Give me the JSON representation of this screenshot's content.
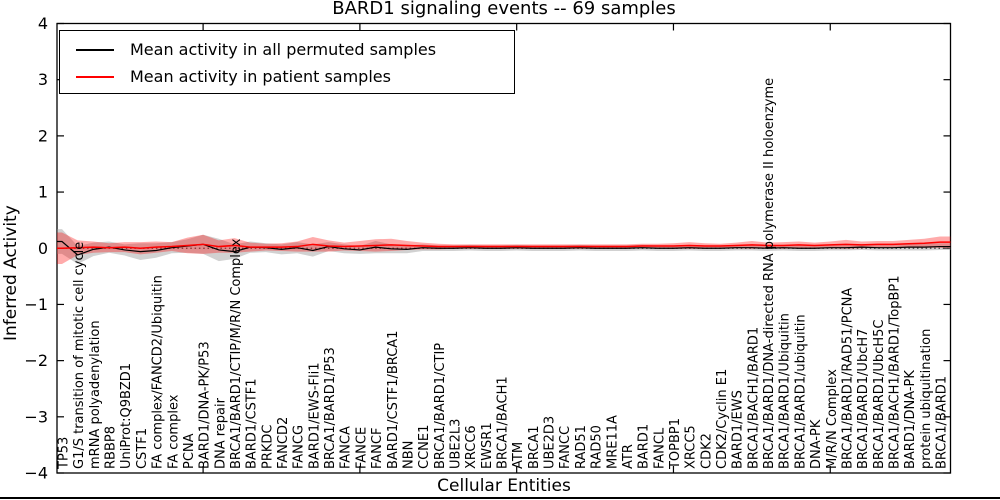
{
  "figure": {
    "title": "BARD1 signaling events -- 69 samples",
    "xlabel": "Cellular Entities",
    "ylabel": "Inferred Activity"
  },
  "legend": {
    "position": "upper left",
    "entries": [
      {
        "key": "permuted",
        "label": "Mean activity in all permuted samples",
        "color": "#000000"
      },
      {
        "key": "patient",
        "label": "Mean activity in patient samples",
        "color": "#ff0000"
      }
    ]
  },
  "chart_data": {
    "type": "line",
    "title": "BARD1 signaling events -- 69 samples",
    "xlabel": "Cellular Entities",
    "ylabel": "Inferred Activity",
    "ylim": [
      -4,
      4
    ],
    "yticks": [
      4,
      3,
      2,
      1,
      0,
      -1,
      -2,
      -3,
      -4
    ],
    "ytick_labels": [
      "4",
      "3",
      "2",
      "1",
      "0",
      "−1",
      "−2",
      "−3",
      "−4"
    ],
    "xtick_positions": [
      9,
      19,
      29,
      39,
      49
    ],
    "grid": false,
    "zero_line": true,
    "legend_position": "upper left",
    "categories": [
      "TP53",
      "G1/S transition of mitotic cell cycle",
      "mRNA polyadenylation",
      "RBBP8",
      "UniProt:Q9BZD1",
      "CSTF1",
      "FA complex/FANCD2/Ubiquitin",
      "FA complex",
      "PCNA",
      "BARD1/DNA-PK/P53",
      "DNA repair",
      "BRCA1/BARD1/CTIP/M/R/N Complex",
      "BARD1/CSTF1",
      "PRKDC",
      "FANCD2",
      "FANCG",
      "BARD1/EWS-Fli1",
      "BRCA1/BARD1/P53",
      "FANCA",
      "FANCE",
      "FANCF",
      "BARD1/CSTF1/BRCA1",
      "NBN",
      "CCNE1",
      "BRCA1/BARD1/CTIP",
      "UBE2L3",
      "XRCC6",
      "EWSR1",
      "BRCA1/BACH1",
      "ATM",
      "BRCA1",
      "UBE2D3",
      "FANCC",
      "RAD51",
      "RAD50",
      "MRE11A",
      "ATR",
      "BARD1",
      "FANCL",
      "TOPBP1",
      "XRCC5",
      "CDK2",
      "CDK2/Cyclin E1",
      "BARD1/EWS",
      "BRCA1/BACH1/BARD1",
      "BRCA1/BARD1/DNA-directed RNA polymerase II holoenzyme",
      "BRCA1/BARD1/Ubiquitin",
      "BRCA1/BARD1/ubiquitin",
      "DNA-PK",
      "M/R/N Complex",
      "BRCA1/BARD1/RAD51/PCNA",
      "BRCA1/BARD1/UbcH7",
      "BRCA1/BARD1/UbcH5C",
      "BRCA1/BACH1/BARD1/TopBP1",
      "BARD1/DNA-PK",
      "protein ubiquitination",
      "BRCA1/BARD1"
    ],
    "series": [
      {
        "key": "permuted",
        "name": "Mean activity in all permuted samples",
        "color": "#000000",
        "band_color": "#999999",
        "band_opacity": 0.45,
        "values": [
          0.12,
          -0.12,
          -0.02,
          0.02,
          -0.03,
          -0.06,
          -0.04,
          0.01,
          0.04,
          0.07,
          -0.03,
          -0.06,
          0.02,
          0.01,
          -0.02,
          0.01,
          -0.04,
          0.03,
          -0.01,
          -0.03,
          0.02,
          -0.01,
          -0.02,
          0.01,
          0.0,
          0.0,
          0.01,
          0.0,
          0.0,
          0.01,
          0.0,
          0.0,
          0.0,
          0.01,
          0.0,
          0.0,
          0.0,
          0.01,
          0.0,
          0.0,
          0.01,
          0.0,
          0.0,
          0.01,
          0.01,
          0.0,
          0.01,
          0.0,
          0.0,
          0.01,
          0.01,
          0.02,
          0.01,
          0.01,
          0.02,
          0.02,
          0.03
        ],
        "band": [
          0.22,
          0.16,
          0.12,
          0.1,
          0.1,
          0.15,
          0.13,
          0.1,
          0.12,
          0.17,
          0.2,
          0.13,
          0.1,
          0.08,
          0.09,
          0.1,
          0.11,
          0.08,
          0.08,
          0.07,
          0.11,
          0.08,
          0.07,
          0.06,
          0.05,
          0.05,
          0.05,
          0.05,
          0.05,
          0.05,
          0.05,
          0.05,
          0.05,
          0.05,
          0.05,
          0.05,
          0.05,
          0.05,
          0.05,
          0.05,
          0.05,
          0.05,
          0.05,
          0.05,
          0.05,
          0.05,
          0.05,
          0.05,
          0.05,
          0.05,
          0.05,
          0.05,
          0.05,
          0.05,
          0.06,
          0.06,
          0.06
        ]
      },
      {
        "key": "patient",
        "name": "Mean activity in patient samples",
        "color": "#ff0000",
        "band_color": "#ff0000",
        "band_opacity": 0.33,
        "values": [
          0.0,
          0.01,
          0.02,
          0.01,
          0.02,
          0.0,
          0.02,
          0.03,
          0.05,
          0.07,
          0.03,
          0.05,
          0.02,
          0.02,
          0.02,
          0.03,
          0.07,
          0.04,
          0.03,
          0.04,
          0.05,
          0.06,
          0.05,
          0.04,
          0.03,
          0.03,
          0.03,
          0.03,
          0.03,
          0.03,
          0.03,
          0.03,
          0.03,
          0.03,
          0.03,
          0.03,
          0.03,
          0.04,
          0.04,
          0.04,
          0.05,
          0.04,
          0.04,
          0.05,
          0.06,
          0.05,
          0.05,
          0.06,
          0.05,
          0.06,
          0.07,
          0.06,
          0.07,
          0.07,
          0.08,
          0.09,
          0.11
        ],
        "band": [
          0.28,
          0.13,
          0.1,
          0.08,
          0.09,
          0.11,
          0.1,
          0.08,
          0.14,
          0.17,
          0.11,
          0.13,
          0.08,
          0.06,
          0.07,
          0.09,
          0.13,
          0.1,
          0.07,
          0.09,
          0.11,
          0.11,
          0.08,
          0.06,
          0.05,
          0.04,
          0.04,
          0.04,
          0.04,
          0.04,
          0.04,
          0.04,
          0.04,
          0.04,
          0.04,
          0.04,
          0.04,
          0.04,
          0.04,
          0.05,
          0.06,
          0.05,
          0.04,
          0.05,
          0.07,
          0.05,
          0.06,
          0.06,
          0.05,
          0.06,
          0.08,
          0.06,
          0.06,
          0.06,
          0.07,
          0.08,
          0.1
        ]
      }
    ]
  }
}
